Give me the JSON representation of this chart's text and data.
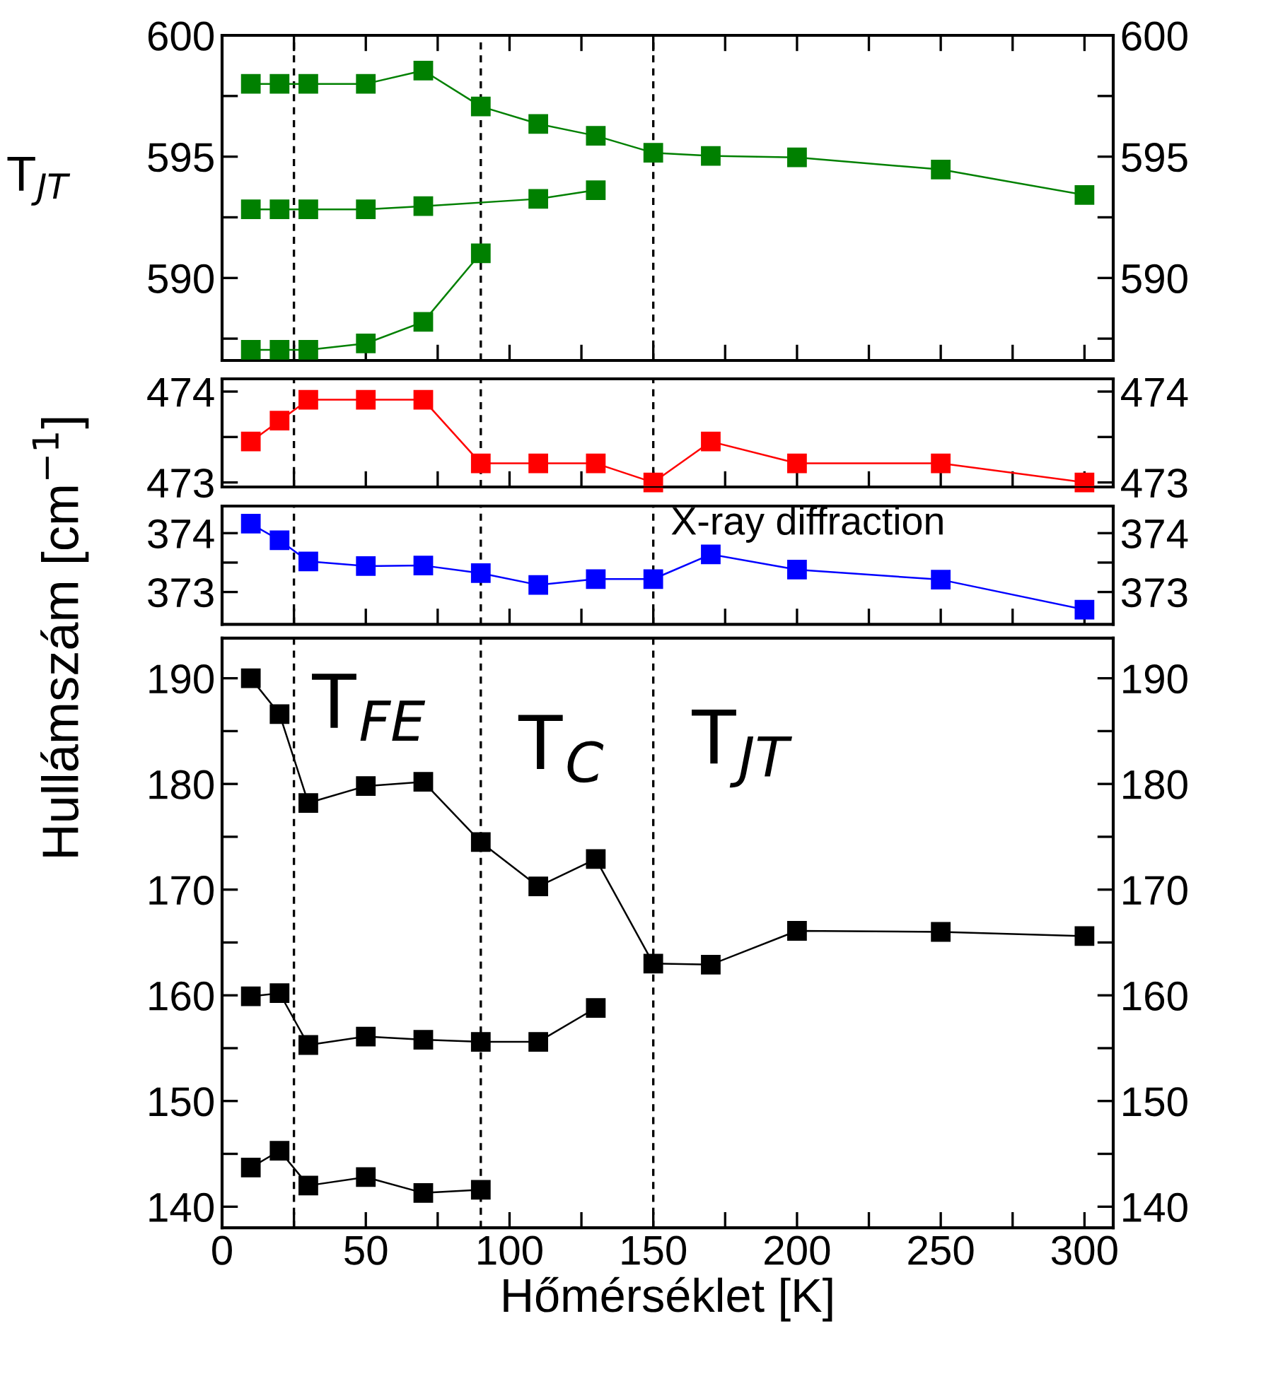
{
  "chart_data": [
    {
      "type": "line",
      "marker": "square",
      "line_style": "solid",
      "tick_labels": "y",
      "annotations": [
        "T$_{JT}$"
      ],
      "xlim": [
        0,
        310
      ],
      "xticks": [
        0,
        {
          "value": 25,
          "label": null
        },
        50,
        {
          "value": 75,
          "label": null
        },
        100,
        {
          "value": 125,
          "label": null
        },
        150,
        {
          "value": 175,
          "label": null
        },
        200,
        {
          "value": 225,
          "label": null
        },
        250,
        {
          "value": 275,
          "label": null
        },
        300
      ],
      "ylim": [
        586.6,
        600
      ],
      "yticks": [
        {
          "value": 587.5,
          "label": null
        },
        590,
        {
          "value": 592.5,
          "label": null
        },
        595,
        {
          "value": 597.5,
          "label": null
        },
        600
      ],
      "y2lim": [
        586.6,
        600
      ],
      "y2ticks": [
        {
          "value": 587.5,
          "label": null
        },
        590,
        {
          "value": 592.5,
          "label": null
        },
        595,
        {
          "value": 597.5,
          "label": null
        },
        600
      ],
      "ref_lines": [
        {
          "axis": "x",
          "value": 25,
          "color": "#000000",
          "line_style": "dashed"
        },
        {
          "axis": "x",
          "value": 90,
          "color": "#000000",
          "line_style": "dashed"
        },
        {
          "axis": "x",
          "value": 150,
          "color": "#000000",
          "line_style": "dashed"
        }
      ],
      "series": [
        {
          "color": "#008000",
          "x": [
            10,
            20,
            30,
            50,
            70,
            90,
            110,
            130,
            150,
            170,
            200,
            250,
            300
          ],
          "values": [
            598.0,
            598.0,
            598.0,
            598.0,
            598.55,
            597.07,
            596.35,
            595.86,
            595.16,
            595.03,
            594.97,
            594.47,
            593.42
          ]
        },
        {
          "color": "#008000",
          "x": [
            10,
            20,
            30,
            50,
            70,
            110,
            130
          ],
          "values": [
            592.83,
            592.83,
            592.83,
            592.83,
            592.96,
            593.26,
            593.62
          ]
        },
        {
          "color": "#008000",
          "x": [
            10,
            20,
            30,
            50,
            70,
            90
          ],
          "values": [
            587.04,
            587.04,
            587.04,
            587.3,
            588.19,
            591.02
          ]
        }
      ]
    },
    {
      "type": "line",
      "marker": "square",
      "line_style": "solid",
      "tick_labels": "y",
      "xlim": [
        0,
        310
      ],
      "xticks": [
        0,
        {
          "value": 25,
          "label": null
        },
        50,
        {
          "value": 75,
          "label": null
        },
        100,
        {
          "value": 125,
          "label": null
        },
        150,
        {
          "value": 175,
          "label": null
        },
        200,
        {
          "value": 225,
          "label": null
        },
        250,
        {
          "value": 275,
          "label": null
        },
        300
      ],
      "ylim": [
        472.95,
        474.14
      ],
      "yticks": [
        473,
        {
          "value": 473.5,
          "label": null
        },
        474
      ],
      "y2lim": [
        472.95,
        474.14
      ],
      "y2ticks": [
        473,
        {
          "value": 473.5,
          "label": null
        },
        474
      ],
      "ref_lines": [
        {
          "axis": "x",
          "value": 25,
          "color": "#000000",
          "line_style": "dashed"
        },
        {
          "axis": "x",
          "value": 90,
          "color": "#000000",
          "line_style": "dashed"
        },
        {
          "axis": "x",
          "value": 150,
          "color": "#000000",
          "line_style": "dashed"
        }
      ],
      "series": [
        {
          "color": "#ff0000",
          "x": [
            10,
            20,
            30,
            50,
            70,
            90,
            110,
            130,
            150,
            170,
            200,
            250,
            300
          ],
          "values": [
            473.45,
            473.68,
            473.91,
            473.91,
            473.91,
            473.21,
            473.21,
            473.21,
            473.0,
            473.45,
            473.21,
            473.21,
            473.0
          ]
        }
      ]
    },
    {
      "type": "line",
      "marker": "square",
      "line_style": "solid",
      "tick_labels": "y",
      "annotations": [
        "X-ray diffraction"
      ],
      "xlim": [
        0,
        310
      ],
      "xticks": [
        0,
        {
          "value": 25,
          "label": null
        },
        50,
        {
          "value": 75,
          "label": null
        },
        100,
        {
          "value": 125,
          "label": null
        },
        150,
        {
          "value": 175,
          "label": null
        },
        200,
        {
          "value": 225,
          "label": null
        },
        250,
        {
          "value": 275,
          "label": null
        },
        300
      ],
      "ylim": [
        372.45,
        374.46
      ],
      "yticks": [
        373,
        {
          "value": 373.5,
          "label": null
        },
        374
      ],
      "y2lim": [
        372.45,
        374.46
      ],
      "y2ticks": [
        373,
        {
          "value": 373.5,
          "label": null
        },
        374
      ],
      "ref_lines": [
        {
          "axis": "x",
          "value": 25,
          "color": "#000000",
          "line_style": "dashed"
        },
        {
          "axis": "x",
          "value": 90,
          "color": "#000000",
          "line_style": "dashed"
        },
        {
          "axis": "x",
          "value": 150,
          "color": "#000000",
          "line_style": "dashed"
        }
      ],
      "series": [
        {
          "color": "#0000ff",
          "x": [
            10,
            20,
            30,
            50,
            70,
            90,
            110,
            130,
            150,
            170,
            200,
            250,
            300
          ],
          "values": [
            374.16,
            373.88,
            373.52,
            373.44,
            373.45,
            373.32,
            373.12,
            373.22,
            373.22,
            373.64,
            373.38,
            373.21,
            372.7
          ]
        }
      ]
    },
    {
      "type": "line",
      "marker": "square",
      "line_style": "solid",
      "xlabel": "Hőmérséklet [K]",
      "ylabel": "Hullámszám [cm$^{−1}$]",
      "annotations": [
        "T$_{FE}$",
        "T$_{C}$",
        "T$_{JT}$"
      ],
      "xlim": [
        0,
        310
      ],
      "xticks": [
        0,
        {
          "value": 25,
          "label": null
        },
        50,
        {
          "value": 75,
          "label": null
        },
        100,
        {
          "value": 125,
          "label": null
        },
        150,
        {
          "value": 175,
          "label": null
        },
        200,
        {
          "value": 225,
          "label": null
        },
        250,
        {
          "value": 275,
          "label": null
        },
        300
      ],
      "ylim": [
        138.0,
        193.8
      ],
      "yticks": [
        140,
        {
          "value": 145,
          "label": null
        },
        150,
        {
          "value": 155,
          "label": null
        },
        160,
        {
          "value": 165,
          "label": null
        },
        170,
        {
          "value": 175,
          "label": null
        },
        180,
        {
          "value": 185,
          "label": null
        },
        190
      ],
      "y2lim": [
        138.0,
        193.8
      ],
      "y2ticks": [
        140,
        {
          "value": 145,
          "label": null
        },
        150,
        {
          "value": 155,
          "label": null
        },
        160,
        {
          "value": 165,
          "label": null
        },
        170,
        {
          "value": 175,
          "label": null
        },
        180,
        {
          "value": 185,
          "label": null
        },
        190
      ],
      "ref_lines": [
        {
          "axis": "x",
          "value": 25,
          "color": "#000000",
          "line_style": "dashed"
        },
        {
          "axis": "x",
          "value": 90,
          "color": "#000000",
          "line_style": "dashed"
        },
        {
          "axis": "x",
          "value": 150,
          "color": "#000000",
          "line_style": "dashed"
        }
      ],
      "series": [
        {
          "color": "#000000",
          "x": [
            10,
            20,
            30,
            50,
            70,
            90,
            110,
            130,
            150,
            170,
            200,
            250,
            300
          ],
          "values": [
            190.0,
            186.6,
            178.2,
            179.8,
            180.2,
            174.5,
            170.3,
            172.9,
            163.0,
            162.9,
            166.1,
            166.0,
            165.6
          ]
        },
        {
          "color": "#000000",
          "x": [
            10,
            20,
            30,
            50,
            70,
            90,
            110,
            130
          ],
          "values": [
            159.9,
            160.2,
            155.3,
            156.1,
            155.8,
            155.6,
            155.6,
            158.8
          ]
        },
        {
          "color": "#000000",
          "x": [
            10,
            20,
            30,
            50,
            70,
            90
          ],
          "values": [
            143.7,
            145.3,
            142.0,
            142.8,
            141.3,
            141.6
          ]
        }
      ]
    }
  ]
}
